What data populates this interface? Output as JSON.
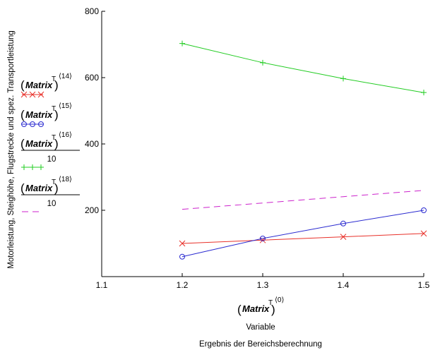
{
  "chart_data": {
    "type": "line",
    "title": "",
    "caption": "Ergebnis der Bereichsberechnung",
    "xlabel": {
      "matrix": "Matrix",
      "transpose": "T",
      "index": "⟨0⟩",
      "sub": "Variable"
    },
    "ylabel": "Motorleistung, Steighöhe, Flugstrecke und spez. Transportleistung",
    "xlim": [
      1.1,
      1.5
    ],
    "ylim": [
      0,
      800
    ],
    "xticks": [
      "1.1",
      "1.2",
      "1.3",
      "1.4",
      "1.5"
    ],
    "yticks": [
      "200",
      "400",
      "600",
      "800"
    ],
    "x": [
      1.2,
      1.3,
      1.4,
      1.5
    ],
    "series": [
      {
        "legend": {
          "matrix": "Matrix",
          "transpose": "T",
          "index": "⟨14⟩",
          "divisor": ""
        },
        "values": [
          100,
          110,
          120,
          130
        ],
        "color": "#e8312a",
        "marker": "x"
      },
      {
        "legend": {
          "matrix": "Matrix",
          "transpose": "T",
          "index": "⟨15⟩",
          "divisor": ""
        },
        "values": [
          60,
          115,
          160,
          200
        ],
        "color": "#2b2bd0",
        "marker": "o"
      },
      {
        "legend": {
          "matrix": "Matrix",
          "transpose": "T",
          "index": "⟨16⟩",
          "divisor": "10"
        },
        "values": [
          703,
          645,
          597,
          555
        ],
        "color": "#22cc22",
        "marker": "+"
      },
      {
        "legend": {
          "matrix": "Matrix",
          "transpose": "T",
          "index": "⟨18⟩",
          "divisor": "10"
        },
        "values": [
          203,
          222,
          241,
          260
        ],
        "color": "#cc22cc",
        "marker": "none",
        "dash": true
      }
    ],
    "legend_position": "left",
    "grid": false
  }
}
